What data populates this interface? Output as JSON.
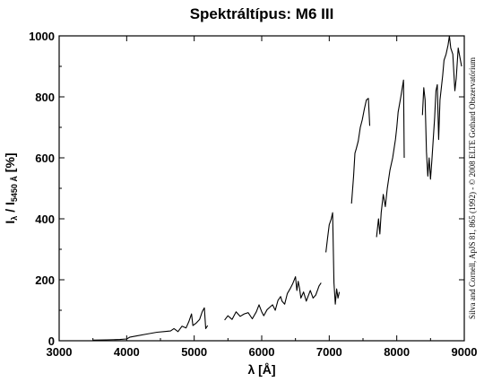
{
  "chart_data": {
    "type": "line",
    "title": "Spektráltípus: M6 III",
    "xlabel": "λ [Å]",
    "ylabel": {
      "base": "I",
      "sub1": "λ",
      "mid": " / I",
      "sub2": "5450 Å",
      "unit": " [%]"
    },
    "credit": "Silva and Cornell, ApJS 81, 865 (1992) - © 2008 ELTE Gothard Obszervatórium",
    "xlim": [
      3000,
      9000
    ],
    "ylim": [
      0,
      1000
    ],
    "x_ticks": [
      "3000",
      "4000",
      "5000",
      "6000",
      "7000",
      "8000",
      "9000"
    ],
    "y_ticks": [
      "0",
      "200",
      "400",
      "600",
      "800",
      "1000"
    ],
    "grid": false,
    "series": [
      {
        "segments": [
          [
            [
              3500,
              2
            ],
            [
              3700,
              3
            ],
            [
              3900,
              4
            ],
            [
              4000,
              6
            ],
            [
              4050,
              12
            ],
            [
              4150,
              16
            ],
            [
              4300,
              22
            ],
            [
              4450,
              28
            ],
            [
              4550,
              30
            ],
            [
              4650,
              32
            ],
            [
              4700,
              40
            ],
            [
              4760,
              30
            ],
            [
              4820,
              48
            ],
            [
              4880,
              42
            ],
            [
              4920,
              62
            ],
            [
              4960,
              88
            ],
            [
              4980,
              50
            ],
            [
              5030,
              58
            ],
            [
              5080,
              70
            ],
            [
              5120,
              96
            ],
            [
              5150,
              108
            ],
            [
              5170,
              40
            ],
            [
              5200,
              50
            ]
          ],
          [
            [
              5450,
              68
            ],
            [
              5500,
              82
            ],
            [
              5560,
              70
            ],
            [
              5620,
              95
            ],
            [
              5680,
              80
            ],
            [
              5740,
              88
            ],
            [
              5800,
              92
            ],
            [
              5860,
              72
            ],
            [
              5920,
              95
            ],
            [
              5960,
              118
            ],
            [
              6000,
              95
            ],
            [
              6030,
              82
            ],
            [
              6080,
              102
            ],
            [
              6120,
              110
            ],
            [
              6160,
              118
            ],
            [
              6200,
              100
            ],
            [
              6240,
              132
            ],
            [
              6280,
              145
            ],
            [
              6300,
              130
            ],
            [
              6340,
              120
            ],
            [
              6380,
              155
            ],
            [
              6420,
              170
            ],
            [
              6460,
              188
            ],
            [
              6500,
              210
            ],
            [
              6520,
              165
            ],
            [
              6540,
              195
            ],
            [
              6560,
              172
            ],
            [
              6580,
              140
            ],
            [
              6620,
              160
            ],
            [
              6660,
              130
            ],
            [
              6720,
              165
            ],
            [
              6760,
              140
            ],
            [
              6800,
              150
            ],
            [
              6850,
              180
            ],
            [
              6880,
              190
            ]
          ],
          [
            [
              6950,
              290
            ],
            [
              6975,
              335
            ],
            [
              7000,
              380
            ],
            [
              7030,
              400
            ],
            [
              7050,
              420
            ],
            [
              7070,
              190
            ],
            [
              7090,
              120
            ],
            [
              7110,
              170
            ],
            [
              7130,
              140
            ],
            [
              7150,
              160
            ]
          ],
          [
            [
              7330,
              450
            ],
            [
              7360,
              540
            ],
            [
              7380,
              615
            ],
            [
              7400,
              630
            ],
            [
              7430,
              655
            ],
            [
              7460,
              700
            ],
            [
              7490,
              725
            ],
            [
              7520,
              760
            ],
            [
              7550,
              790
            ],
            [
              7580,
              795
            ],
            [
              7600,
              705
            ]
          ],
          [
            [
              7700,
              340
            ],
            [
              7730,
              400
            ],
            [
              7750,
              350
            ],
            [
              7770,
              420
            ],
            [
              7800,
              480
            ],
            [
              7830,
              440
            ],
            [
              7860,
              500
            ],
            [
              7900,
              560
            ],
            [
              7940,
              600
            ],
            [
              7980,
              660
            ],
            [
              8000,
              700
            ],
            [
              8020,
              750
            ],
            [
              8060,
              800
            ],
            [
              8100,
              855
            ],
            [
              8110,
              600
            ]
          ],
          [
            [
              8380,
              740
            ],
            [
              8400,
              830
            ],
            [
              8420,
              790
            ],
            [
              8440,
              620
            ],
            [
              8460,
              540
            ],
            [
              8480,
              600
            ],
            [
              8500,
              530
            ],
            [
              8520,
              590
            ],
            [
              8560,
              730
            ],
            [
              8580,
              820
            ],
            [
              8600,
              840
            ],
            [
              8620,
              660
            ],
            [
              8640,
              790
            ],
            [
              8680,
              870
            ],
            [
              8700,
              920
            ],
            [
              8730,
              940
            ],
            [
              8760,
              970
            ],
            [
              8780,
              1000
            ],
            [
              8800,
              960
            ],
            [
              8830,
              940
            ],
            [
              8860,
              820
            ],
            [
              8880,
              860
            ],
            [
              8910,
              960
            ],
            [
              8960,
              900
            ]
          ]
        ]
      }
    ]
  }
}
